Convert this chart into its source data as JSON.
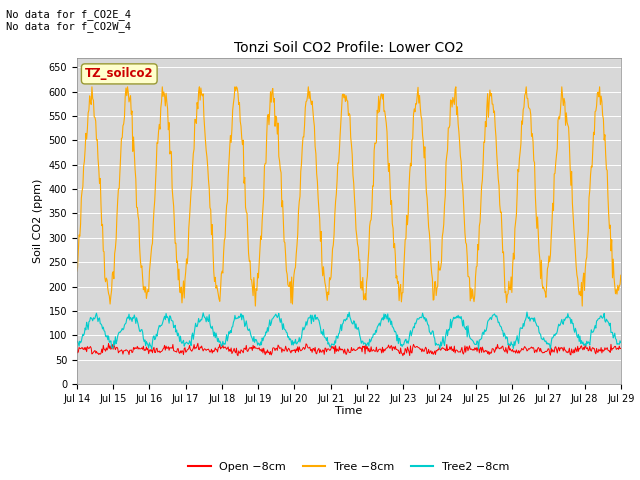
{
  "title": "Tonzi Soil CO2 Profile: Lower CO2",
  "ylabel": "Soil CO2 (ppm)",
  "xlabel": "Time",
  "no_data_text": [
    "No data for f_CO2E_4",
    "No data for f_CO2W_4"
  ],
  "legend_box_label": "TZ_soilco2",
  "ylim": [
    0,
    670
  ],
  "yticks": [
    0,
    50,
    100,
    150,
    200,
    250,
    300,
    350,
    400,
    450,
    500,
    550,
    600,
    650
  ],
  "line_colors": {
    "open": "#ff0000",
    "tree": "#ffaa00",
    "tree2": "#00cccc"
  },
  "line_labels": [
    "Open −8cm",
    "Tree −8cm",
    "Tree2 −8cm"
  ],
  "fig_bg_color": "#ffffff",
  "plot_bg_color": "#d8d8d8",
  "n_days": 15,
  "pts_per_day": 48,
  "title_fontsize": 10,
  "axis_label_fontsize": 8,
  "tick_fontsize": 7,
  "legend_fontsize": 8,
  "nodata_fontsize": 7.5
}
